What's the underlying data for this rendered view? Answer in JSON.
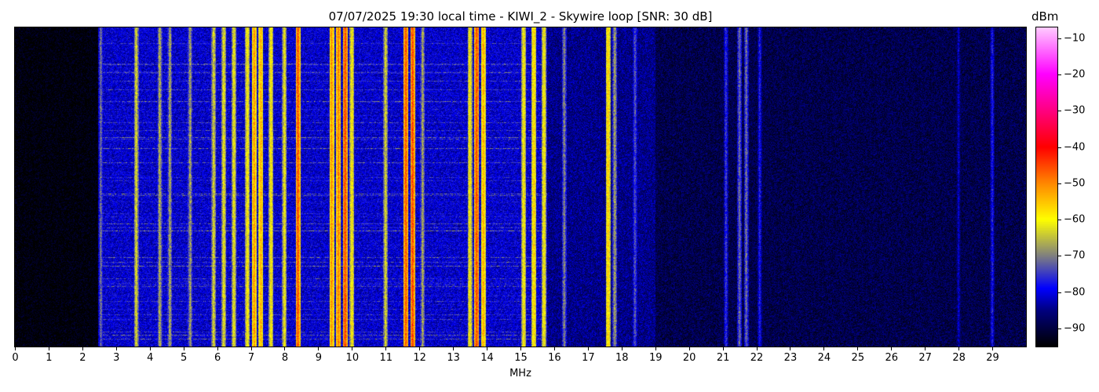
{
  "chart_data": {
    "type": "heatmap",
    "title": "07/07/2025 19:30 local time - KIWI_2 - Skywire loop [SNR: 30 dB]",
    "xlabel": "MHz",
    "xlim": [
      0,
      30
    ],
    "xticks": [
      0,
      1,
      2,
      3,
      4,
      5,
      6,
      7,
      8,
      9,
      10,
      11,
      12,
      13,
      14,
      15,
      16,
      17,
      18,
      19,
      20,
      21,
      22,
      23,
      24,
      25,
      26,
      27,
      28,
      29
    ],
    "colorbar": {
      "label": "dBm",
      "range": [
        -95,
        -7
      ],
      "ticks": [
        -10,
        -20,
        -30,
        -40,
        -50,
        -60,
        -70,
        -80,
        -90
      ],
      "colormap": [
        {
          "v": -95,
          "c": "#000000"
        },
        {
          "v": -85,
          "c": "#000080"
        },
        {
          "v": -79,
          "c": "#0000ff"
        },
        {
          "v": -70,
          "c": "#808080"
        },
        {
          "v": -60,
          "c": "#ffff00"
        },
        {
          "v": -50,
          "c": "#ff8800"
        },
        {
          "v": -40,
          "c": "#ff0000"
        },
        {
          "v": -30,
          "c": "#ff0080"
        },
        {
          "v": -20,
          "c": "#ff00ff"
        },
        {
          "v": -7,
          "c": "#ffccff"
        }
      ]
    },
    "noise_floor": [
      {
        "from": 0,
        "to": 2.55,
        "dbm": -95
      },
      {
        "from": 2.55,
        "to": 15.8,
        "dbm": -81
      },
      {
        "from": 15.8,
        "to": 19,
        "dbm": -85
      },
      {
        "from": 19,
        "to": 30,
        "dbm": -89
      }
    ],
    "signals": [
      {
        "mhz": 2.55,
        "dbm": -70
      },
      {
        "mhz": 3.6,
        "dbm": -62
      },
      {
        "mhz": 4.3,
        "dbm": -65
      },
      {
        "mhz": 4.6,
        "dbm": -66
      },
      {
        "mhz": 5.2,
        "dbm": -66
      },
      {
        "mhz": 5.9,
        "dbm": -62
      },
      {
        "mhz": 6.2,
        "dbm": -60
      },
      {
        "mhz": 6.5,
        "dbm": -60
      },
      {
        "mhz": 6.9,
        "dbm": -58
      },
      {
        "mhz": 7.1,
        "dbm": -50
      },
      {
        "mhz": 7.3,
        "dbm": -52
      },
      {
        "mhz": 7.6,
        "dbm": -58
      },
      {
        "mhz": 8.0,
        "dbm": -60
      },
      {
        "mhz": 8.4,
        "dbm": -45
      },
      {
        "mhz": 9.4,
        "dbm": -50
      },
      {
        "mhz": 9.6,
        "dbm": -48
      },
      {
        "mhz": 9.8,
        "dbm": -44
      },
      {
        "mhz": 10.0,
        "dbm": -58
      },
      {
        "mhz": 11.0,
        "dbm": -62
      },
      {
        "mhz": 11.6,
        "dbm": -45
      },
      {
        "mhz": 11.8,
        "dbm": -44
      },
      {
        "mhz": 12.1,
        "dbm": -66
      },
      {
        "mhz": 13.5,
        "dbm": -58
      },
      {
        "mhz": 13.7,
        "dbm": -44
      },
      {
        "mhz": 13.9,
        "dbm": -52
      },
      {
        "mhz": 15.1,
        "dbm": -58
      },
      {
        "mhz": 15.4,
        "dbm": -55
      },
      {
        "mhz": 15.7,
        "dbm": -58
      },
      {
        "mhz": 16.3,
        "dbm": -68
      },
      {
        "mhz": 17.6,
        "dbm": -55
      },
      {
        "mhz": 17.8,
        "dbm": -66
      },
      {
        "mhz": 18.4,
        "dbm": -72
      },
      {
        "mhz": 21.1,
        "dbm": -74
      },
      {
        "mhz": 21.5,
        "dbm": -70
      },
      {
        "mhz": 21.7,
        "dbm": -70
      },
      {
        "mhz": 22.1,
        "dbm": -76
      },
      {
        "mhz": 28.0,
        "dbm": -80
      },
      {
        "mhz": 29.0,
        "dbm": -76
      }
    ]
  }
}
